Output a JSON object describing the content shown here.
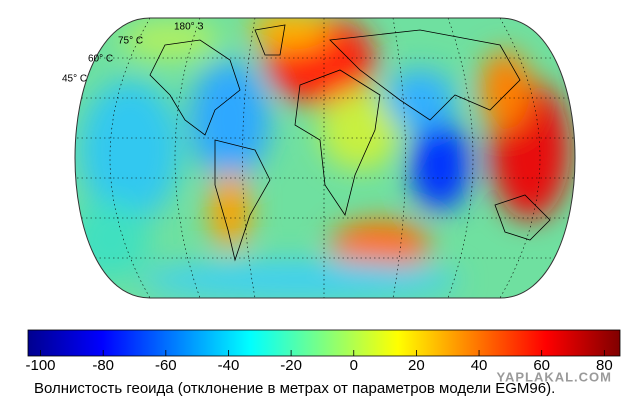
{
  "map": {
    "labels": [
      "180° З",
      "75° С",
      "60° С",
      "45° С"
    ]
  },
  "colorbar": {
    "lim": [
      -104,
      85
    ],
    "ticks": [
      -100,
      -80,
      -60,
      -40,
      -20,
      0,
      20,
      40,
      60,
      80
    ]
  },
  "caption": "Волнистость геоида (отклонение в метрах от параметров модели EGM96).",
  "watermark": "YAPLAKAL.COM"
}
